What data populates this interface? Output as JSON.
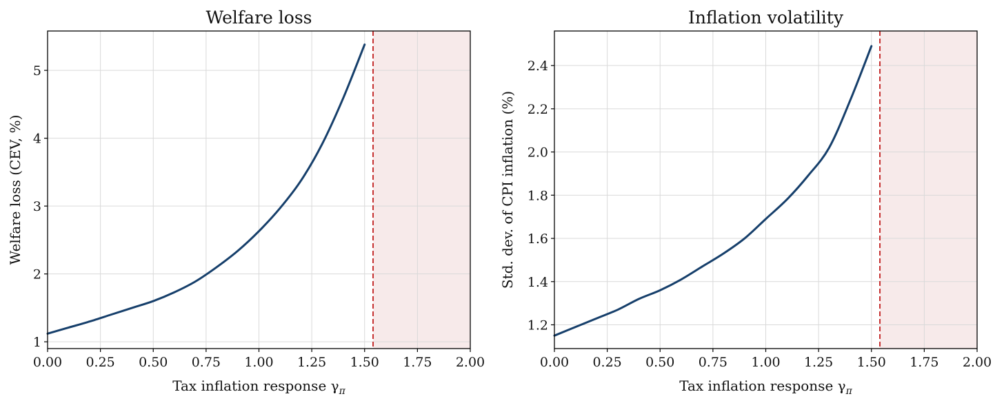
{
  "chart_data": [
    {
      "type": "line",
      "title": "Welfare loss",
      "xlabel": "Tax inflation response γ",
      "xlabel_subscript": "π",
      "ylabel": "Welfare loss (CEV, %)",
      "xlim": [
        0.0,
        2.0
      ],
      "ylim": [
        0.9,
        5.58
      ],
      "xticks": [
        0.0,
        0.25,
        0.5,
        0.75,
        1.0,
        1.25,
        1.5,
        1.75,
        2.0
      ],
      "xtick_labels": [
        "0.00",
        "0.25",
        "0.50",
        "0.75",
        "1.00",
        "1.25",
        "1.50",
        "1.75",
        "2.00"
      ],
      "yticks": [
        1,
        2,
        3,
        4,
        5
      ],
      "ytick_labels": [
        "1",
        "2",
        "3",
        "4",
        "5"
      ],
      "grid": true,
      "threshold": 1.54,
      "shaded_region": [
        1.54,
        2.0
      ],
      "series": [
        {
          "color": "#163f6b",
          "x": [
            0.0,
            0.1,
            0.2,
            0.3,
            0.4,
            0.5,
            0.6,
            0.7,
            0.8,
            0.9,
            1.0,
            1.1,
            1.2,
            1.3,
            1.4,
            1.5
          ],
          "y": [
            1.12,
            1.21,
            1.3,
            1.4,
            1.5,
            1.6,
            1.73,
            1.89,
            2.1,
            2.34,
            2.63,
            2.97,
            3.38,
            3.92,
            4.6,
            5.38
          ]
        }
      ]
    },
    {
      "type": "line",
      "title": "Inflation volatility",
      "xlabel": "Tax inflation response γ",
      "xlabel_subscript": "π",
      "ylabel": "Std. dev. of CPI inflation (%)",
      "xlim": [
        0.0,
        2.0
      ],
      "ylim": [
        1.09,
        2.56
      ],
      "xticks": [
        0.0,
        0.25,
        0.5,
        0.75,
        1.0,
        1.25,
        1.5,
        1.75,
        2.0
      ],
      "xtick_labels": [
        "0.00",
        "0.25",
        "0.50",
        "0.75",
        "1.00",
        "1.25",
        "1.50",
        "1.75",
        "2.00"
      ],
      "yticks": [
        1.2,
        1.4,
        1.6,
        1.8,
        2.0,
        2.2,
        2.4
      ],
      "ytick_labels": [
        "1.2",
        "1.4",
        "1.6",
        "1.8",
        "2.0",
        "2.2",
        "2.4"
      ],
      "grid": true,
      "threshold": 1.54,
      "shaded_region": [
        1.54,
        2.0
      ],
      "series": [
        {
          "color": "#163f6b",
          "x": [
            0.0,
            0.1,
            0.2,
            0.3,
            0.4,
            0.5,
            0.6,
            0.7,
            0.8,
            0.9,
            1.0,
            1.1,
            1.2,
            1.3,
            1.4,
            1.5
          ],
          "y": [
            1.15,
            1.19,
            1.23,
            1.27,
            1.32,
            1.36,
            1.41,
            1.47,
            1.53,
            1.6,
            1.69,
            1.78,
            1.89,
            2.02,
            2.24,
            2.49
          ]
        }
      ]
    }
  ]
}
